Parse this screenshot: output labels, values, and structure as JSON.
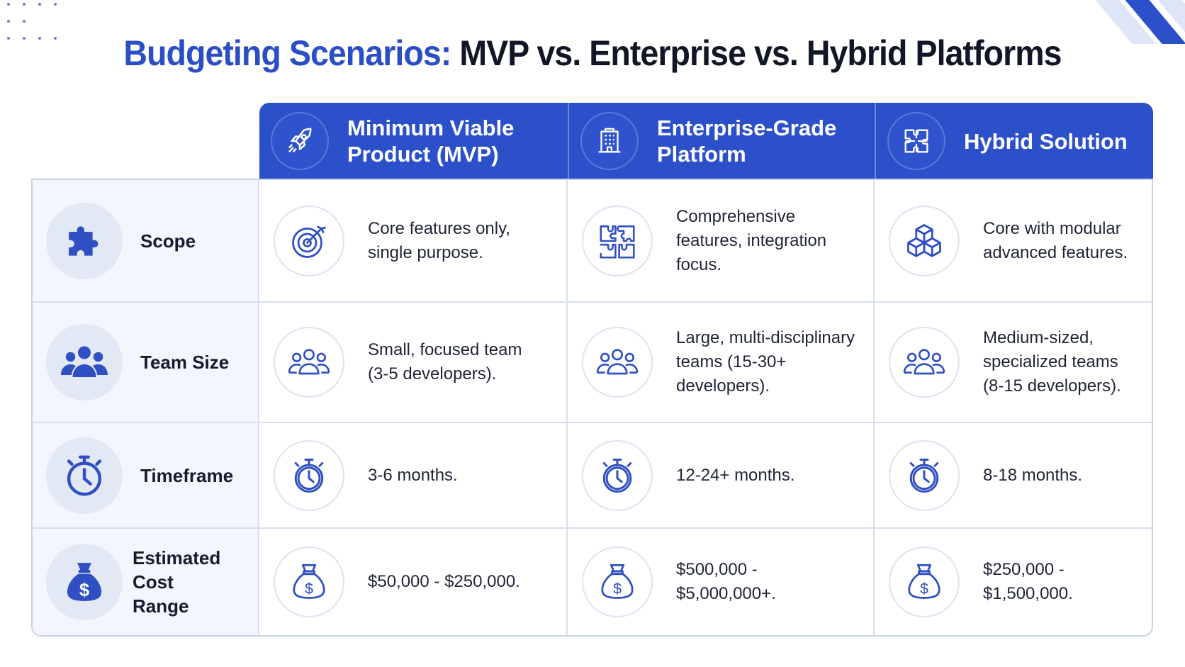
{
  "title": {
    "accent": "Budgeting Scenarios:",
    "rest": "MVP vs. Enterprise vs. Hybrid Platforms"
  },
  "columns": [
    {
      "line1": "Minimum Viable",
      "line2": "Product (MVP)",
      "icon": "rocket-icon"
    },
    {
      "line1": "Enterprise-Grade",
      "line2": "Platform",
      "icon": "building-icon"
    },
    {
      "line1": "Hybrid Solution",
      "line2": "",
      "icon": "puzzle-icon"
    }
  ],
  "rows": [
    {
      "label1": "Scope",
      "label2": "",
      "icon": "puzzle-piece-icon",
      "cells": [
        {
          "icon": "target-icon",
          "lines": [
            "Core features only,",
            "single purpose."
          ]
        },
        {
          "icon": "puzzle-pieces-icon",
          "lines": [
            "Comprehensive",
            "features, integration",
            "focus."
          ]
        },
        {
          "icon": "cubes-icon",
          "lines": [
            "Core with modular",
            "advanced features."
          ]
        }
      ]
    },
    {
      "label1": "Team Size",
      "label2": "",
      "icon": "team-icon",
      "cells": [
        {
          "icon": "team-outline-icon",
          "lines": [
            "Small, focused team",
            "(3-5 developers)."
          ]
        },
        {
          "icon": "team-outline-icon",
          "lines": [
            "Large, multi-disciplinary",
            "teams (15-30+",
            "developers)."
          ]
        },
        {
          "icon": "team-outline-icon",
          "lines": [
            "Medium-sized,",
            "specialized teams",
            "(8-15 developers)."
          ]
        }
      ]
    },
    {
      "label1": "Timeframe",
      "label2": "",
      "icon": "stopwatch-icon",
      "cells": [
        {
          "icon": "stopwatch-outline-icon",
          "lines": [
            "3-6 months."
          ]
        },
        {
          "icon": "stopwatch-outline-icon",
          "lines": [
            "12-24+ months."
          ]
        },
        {
          "icon": "stopwatch-outline-icon",
          "lines": [
            "8-18 months."
          ]
        }
      ]
    },
    {
      "label1": "Estimated Cost",
      "label2": "Range",
      "icon": "money-bag-icon",
      "cells": [
        {
          "icon": "money-bag-outline-icon",
          "lines": [
            "$50,000 - $250,000."
          ]
        },
        {
          "icon": "money-bag-outline-icon",
          "lines": [
            "$500,000 -",
            "$5,000,000+."
          ]
        },
        {
          "icon": "money-bag-outline-icon",
          "lines": [
            "$250,000 -",
            "$1,500,000."
          ]
        }
      ]
    }
  ],
  "colors": {
    "accent": "#2a4ec3",
    "header_bg": "#2c50c9",
    "label_bg": "#f3f6fc",
    "icon_line": "#2f4fc2"
  }
}
